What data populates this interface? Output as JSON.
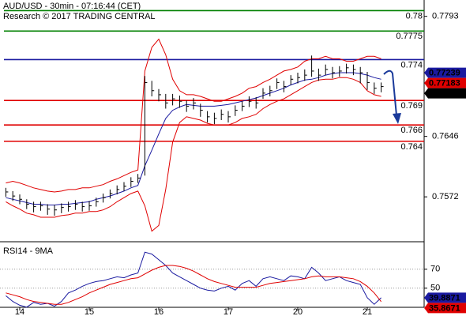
{
  "chart_data": [
    {
      "type": "ohlc",
      "title": "AUD/USD - 30min - 07:16:44 (CET)",
      "subtitle": "Research © 2017 TRADING CENTRAL",
      "categories": [
        null,
        null,
        "14",
        null,
        null,
        null,
        null,
        null,
        null,
        null,
        null,
        null,
        "15",
        null,
        null,
        null,
        null,
        null,
        null,
        null,
        null,
        null,
        "16",
        null,
        null,
        null,
        null,
        null,
        null,
        null,
        null,
        null,
        "17",
        null,
        null,
        null,
        null,
        null,
        null,
        null,
        null,
        null,
        "20",
        null,
        null,
        null,
        null,
        null,
        null,
        null,
        null,
        null,
        "21",
        null,
        null
      ],
      "high": [
        0.7583,
        0.7579,
        0.7575,
        0.7569,
        0.7566,
        0.7566,
        0.7563,
        0.7562,
        0.7564,
        0.7566,
        0.7568,
        0.7566,
        0.7567,
        0.7571,
        0.7576,
        0.7581,
        0.7586,
        0.759,
        0.7596,
        0.76,
        0.772,
        0.7714,
        0.7704,
        0.7698,
        0.7698,
        0.7696,
        0.769,
        0.7693,
        0.7686,
        0.7677,
        0.7675,
        0.7679,
        0.7677,
        0.7684,
        0.7689,
        0.7695,
        0.7694,
        0.7705,
        0.7708,
        0.7717,
        0.7714,
        0.7721,
        0.7724,
        0.7728,
        0.7745,
        0.7729,
        0.7734,
        0.7731,
        0.7732,
        0.7735,
        0.7734,
        0.7731,
        0.7725,
        0.7712,
        0.7712
      ],
      "low": [
        0.7572,
        0.7567,
        0.7563,
        0.7557,
        0.7553,
        0.7555,
        0.755,
        0.7549,
        0.7552,
        0.7554,
        0.7556,
        0.7554,
        0.7555,
        0.756,
        0.7565,
        0.757,
        0.7575,
        0.7579,
        0.7584,
        0.7589,
        0.7598,
        0.7695,
        0.7689,
        0.768,
        0.7684,
        0.7681,
        0.7676,
        0.7679,
        0.767,
        0.7663,
        0.7661,
        0.7666,
        0.7663,
        0.7671,
        0.7677,
        0.7682,
        0.768,
        0.7692,
        0.7695,
        0.7704,
        0.77,
        0.7709,
        0.7711,
        0.7714,
        0.7719,
        0.7714,
        0.7721,
        0.7717,
        0.7719,
        0.7723,
        0.7721,
        0.7711,
        0.7703,
        0.7698,
        0.77
      ],
      "close": [
        0.7578,
        0.7573,
        0.7569,
        0.7563,
        0.756,
        0.7561,
        0.7557,
        0.7556,
        0.7559,
        0.756,
        0.7563,
        0.756,
        0.7561,
        0.7566,
        0.7571,
        0.7576,
        0.7581,
        0.7585,
        0.7591,
        0.7595,
        0.7712,
        0.7702,
        0.7697,
        0.7687,
        0.7692,
        0.7689,
        0.7683,
        0.7687,
        0.7678,
        0.767,
        0.7668,
        0.7673,
        0.767,
        0.7678,
        0.7683,
        0.7689,
        0.7687,
        0.7699,
        0.7702,
        0.7712,
        0.7707,
        0.7716,
        0.7718,
        0.7721,
        0.7726,
        0.7721,
        0.7728,
        0.7724,
        0.7726,
        0.773,
        0.7728,
        0.7724,
        0.7712,
        0.7705,
        0.7707
      ],
      "color": "#000000",
      "series": [
        {
          "color": "#e00000",
          "values": [
            0.7589,
            0.7591,
            0.7589,
            0.7586,
            0.7583,
            0.7581,
            0.7579,
            0.7578,
            0.7579,
            0.7581,
            0.7581,
            0.7583,
            0.7583,
            0.7585,
            0.7587,
            0.7591,
            0.7594,
            0.7598,
            0.7602,
            0.7605,
            0.7726,
            0.7755,
            0.7765,
            0.7746,
            0.7716,
            0.7702,
            0.7697,
            0.7697,
            0.7695,
            0.7692,
            0.7689,
            0.7689,
            0.7692,
            0.7695,
            0.7699,
            0.7705,
            0.7707,
            0.7712,
            0.7716,
            0.7721,
            0.7726,
            0.7728,
            0.7731,
            0.7738,
            0.7741,
            0.7741,
            0.7744,
            0.7741,
            0.7741,
            0.7738,
            0.7738,
            0.7741,
            0.7744,
            0.7744,
            0.7741
          ]
        },
        {
          "color": "#e00000",
          "values": [
            0.7566,
            0.7561,
            0.7557,
            0.7552,
            0.755,
            0.7547,
            0.7547,
            0.7547,
            0.7549,
            0.755,
            0.7552,
            0.7552,
            0.7554,
            0.7554,
            0.7556,
            0.756,
            0.7566,
            0.7571,
            0.7576,
            0.7579,
            0.7561,
            0.753,
            0.7537,
            0.7581,
            0.7639,
            0.7663,
            0.767,
            0.7668,
            0.7666,
            0.7662,
            0.766,
            0.766,
            0.766,
            0.7663,
            0.7668,
            0.767,
            0.7673,
            0.768,
            0.7685,
            0.7689,
            0.7692,
            0.7697,
            0.7702,
            0.7707,
            0.7712,
            0.7715,
            0.7716,
            0.7716,
            0.7718,
            0.7718,
            0.7716,
            0.7712,
            0.7702,
            0.7697,
            0.7695
          ]
        },
        {
          "color": "#1a1aa0",
          "values": [
            0.7571,
            0.7569,
            0.7567,
            0.7565,
            0.7563,
            0.7563,
            0.7562,
            0.7562,
            0.7563,
            0.7563,
            0.7564,
            0.7565,
            0.7566,
            0.7569,
            0.7571,
            0.7573,
            0.7576,
            0.7579,
            0.7583,
            0.7586,
            0.761,
            0.7629,
            0.7649,
            0.7668,
            0.7678,
            0.7682,
            0.7685,
            0.7684,
            0.7683,
            0.7683,
            0.7683,
            0.7684,
            0.7685,
            0.7687,
            0.7689,
            0.7691,
            0.7693,
            0.7696,
            0.7699,
            0.7702,
            0.7705,
            0.7709,
            0.7712,
            0.7715,
            0.7716,
            0.7718,
            0.7721,
            0.7723,
            0.7724,
            0.7724,
            0.7724,
            0.7723,
            0.7721,
            0.7718,
            0.7716
          ]
        }
      ],
      "levels": [
        {
          "value": 0.78,
          "color": "#008000"
        },
        {
          "value": 0.7775,
          "color": "#008000"
        },
        {
          "value": 0.774,
          "color": "#1a1aa0"
        },
        {
          "value": 0.769,
          "color": "#e00000"
        },
        {
          "value": 0.766,
          "color": "#e00000"
        },
        {
          "value": 0.764,
          "color": "#e00000"
        }
      ],
      "price_tags": [
        {
          "value": 0.77239,
          "color": "#1a1aa0"
        },
        {
          "value": 0.77183,
          "color": "#e00000"
        },
        {
          "value": 0.77069,
          "color": "#000000"
        }
      ],
      "ylim": [
        0.7518,
        0.7813
      ],
      "yticks": [
        0.7572,
        0.7646,
        0.7793
      ]
    },
    {
      "type": "line",
      "title": "RSI14 - 9MA",
      "series": [
        {
          "color": "#1a1aa0",
          "values": [
            42,
            36,
            32,
            30,
            35,
            33,
            34,
            31,
            36,
            45,
            48,
            52,
            55,
            57,
            58,
            60,
            62,
            61,
            64,
            66,
            88,
            86,
            80,
            74,
            66,
            62,
            58,
            54,
            50,
            48,
            47,
            50,
            52,
            48,
            55,
            58,
            52,
            60,
            62,
            60,
            58,
            63,
            62,
            60,
            72,
            66,
            58,
            60,
            62,
            58,
            56,
            54,
            40,
            33,
            39.8871
          ]
        },
        {
          "color": "#e00000",
          "values": [
            45,
            43,
            41,
            38,
            36,
            35,
            34,
            33,
            33,
            35,
            38,
            41,
            45,
            48,
            51,
            54,
            56,
            58,
            60,
            61,
            65,
            69,
            72,
            74,
            74,
            73,
            71,
            68,
            64,
            60,
            57,
            55,
            53,
            51,
            51,
            51,
            51,
            53,
            55,
            56,
            57,
            58,
            59,
            60,
            62,
            63,
            62,
            62,
            62,
            61,
            60,
            57,
            52,
            45,
            35.8671
          ]
        }
      ],
      "ylim": [
        29,
        94
      ],
      "yticks": [
        50,
        70
      ],
      "grid": true
    }
  ]
}
